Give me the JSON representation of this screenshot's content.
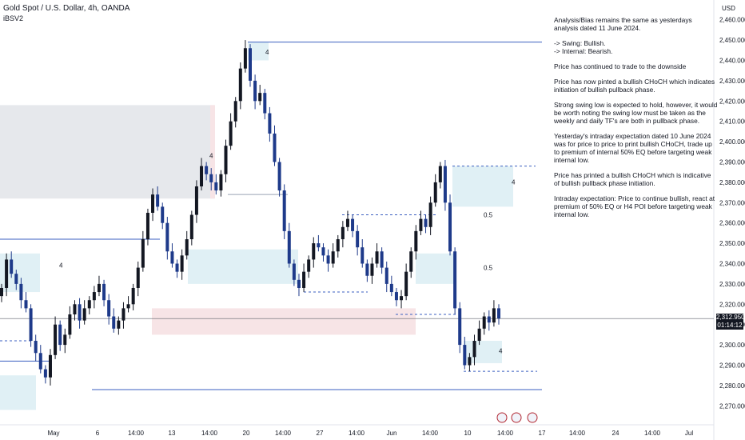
{
  "header": {
    "symbol_title": "Gold Spot / U.S. Dollar, 4h, OANDA",
    "indicator": "iBSV2"
  },
  "currency": "USD",
  "last_price": "2,312.950",
  "countdown": "01:14:12",
  "notes": [
    "Analysis/Bias remains the same as yesterdays analysis dated 11 June 2024.",
    "-> Swing:  Bullish.\n-> Internal:  Bearish.",
    "Price has continued to trade to the downside",
    "Price has now pinted a bullish CHoCH which indicates initiation of bullish pullback phase.",
    "Strong swing low is expected to hold, however, it would be worth noting the swing low must be taken as the weekly and daily TF's are both in pullback phase.",
    "Yesterday's intraday expectation dated 10 June 2024 was for price to price to print bullish CHoCH, trade up to premium of internal 50% EQ before targeting weak internal low.",
    "Price has printed a bullish CHoCH which is indicative of bullish pullback phase initiation.",
    "Intraday expectation: Price to continue bullish, react at premium of 50% EQ or H4 POI before targeting weak internal low."
  ],
  "annotations": {
    "fib_upper": "0.5",
    "fib_lower": "0.5",
    "poi_marker": "4"
  },
  "colors": {
    "bull_candle": "#131722",
    "bear_candle": "#1e3a8a",
    "zone_blue": "#e0f0f5",
    "zone_gray": "#e6e8ec",
    "zone_pink": "#f7e4e6",
    "line_blue": "#3b5fc0",
    "price_line": "#5d606b"
  },
  "chart_data": {
    "type": "candlestick",
    "title": "Gold Spot / U.S. Dollar, 4h, OANDA",
    "ylim": [
      2265,
      2465
    ],
    "y_ticks": [
      2270,
      2280,
      2290,
      2300,
      2310,
      2320,
      2330,
      2340,
      2350,
      2360,
      2370,
      2380,
      2390,
      2400,
      2410,
      2420,
      2430,
      2440,
      2450,
      2460
    ],
    "y_tick_labels": [
      "2,270.000",
      "2,280.000",
      "2,290.000",
      "2,300.000",
      "2,310.000",
      "2,320.000",
      "2,330.000",
      "2,340.000",
      "2,350.000",
      "2,360.000",
      "2,370.000",
      "2,380.000",
      "2,390.000",
      "2,400.000",
      "2,410.000",
      "2,420.000",
      "2,430.000",
      "2,440.000",
      "2,450.000",
      "2,460.000"
    ],
    "x_tick_labels": [
      "May",
      "6",
      "14:00",
      "13",
      "14:00",
      "20",
      "14:00",
      "27",
      "14:00",
      "Jun",
      "14:00",
      "10",
      "14:00",
      "17",
      "14:00",
      "24",
      "14:00",
      "Jul"
    ],
    "close_path": [
      2328,
      2342,
      2335,
      2330,
      2322,
      2318,
      2302,
      2296,
      2288,
      2284,
      2295,
      2310,
      2300,
      2305,
      2315,
      2320,
      2312,
      2318,
      2322,
      2326,
      2330,
      2322,
      2314,
      2308,
      2312,
      2318,
      2320,
      2328,
      2338,
      2352,
      2365,
      2374,
      2368,
      2360,
      2346,
      2340,
      2336,
      2344,
      2352,
      2364,
      2378,
      2388,
      2384,
      2380,
      2376,
      2384,
      2398,
      2410,
      2420,
      2436,
      2446,
      2430,
      2420,
      2424,
      2414,
      2404,
      2390,
      2376,
      2356,
      2340,
      2332,
      2328,
      2336,
      2342,
      2350,
      2348,
      2344,
      2340,
      2346,
      2352,
      2358,
      2362,
      2356,
      2348,
      2340,
      2334,
      2340,
      2346,
      2338,
      2330,
      2326,
      2322,
      2324,
      2336,
      2346,
      2356,
      2362,
      2358,
      2370,
      2380,
      2388,
      2370,
      2346,
      2318,
      2300,
      2290,
      2294,
      2302,
      2308,
      2314,
      2311,
      2318,
      2313
    ],
    "current_price": 2312.95,
    "levels": [
      {
        "label": "swing high line",
        "value": 2449
      },
      {
        "label": "weak low line",
        "value": 2278
      }
    ]
  }
}
